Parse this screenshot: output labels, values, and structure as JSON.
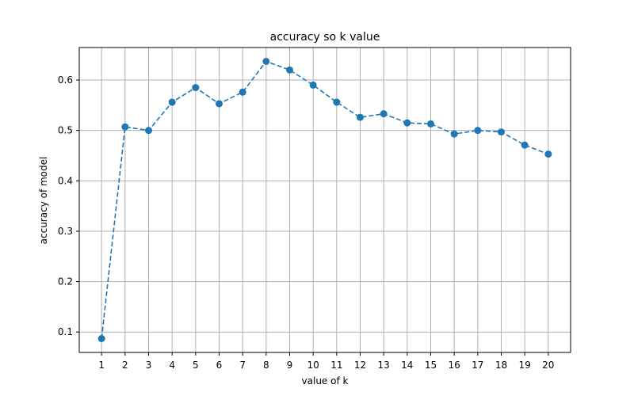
{
  "chart_data": {
    "type": "line",
    "title": "accuracy so k value",
    "xlabel": "value of k",
    "ylabel": "accuracy of model",
    "x": [
      1,
      2,
      3,
      4,
      5,
      6,
      7,
      8,
      9,
      10,
      11,
      12,
      13,
      14,
      15,
      16,
      17,
      18,
      19,
      20
    ],
    "series": [
      {
        "values": [
          0.087,
          0.507,
          0.5,
          0.556,
          0.585,
          0.553,
          0.576,
          0.637,
          0.62,
          0.59,
          0.556,
          0.526,
          0.533,
          0.515,
          0.513,
          0.493,
          0.5,
          0.497,
          0.471,
          0.453
        ]
      }
    ],
    "xticks": [
      "1",
      "2",
      "3",
      "4",
      "5",
      "6",
      "7",
      "8",
      "9",
      "10",
      "11",
      "12",
      "13",
      "14",
      "15",
      "16",
      "17",
      "18",
      "19",
      "20"
    ],
    "yticks": [
      "0.1",
      "0.2",
      "0.3",
      "0.4",
      "0.5",
      "0.6"
    ],
    "ytick_values": [
      0.1,
      0.2,
      0.3,
      0.4,
      0.5,
      0.6
    ],
    "xlim": [
      0.05,
      20.95
    ],
    "ylim": [
      0.0595,
      0.6645
    ],
    "grid": true,
    "line_style": "dashed",
    "marker": "circle",
    "color": "#1f77b4"
  }
}
